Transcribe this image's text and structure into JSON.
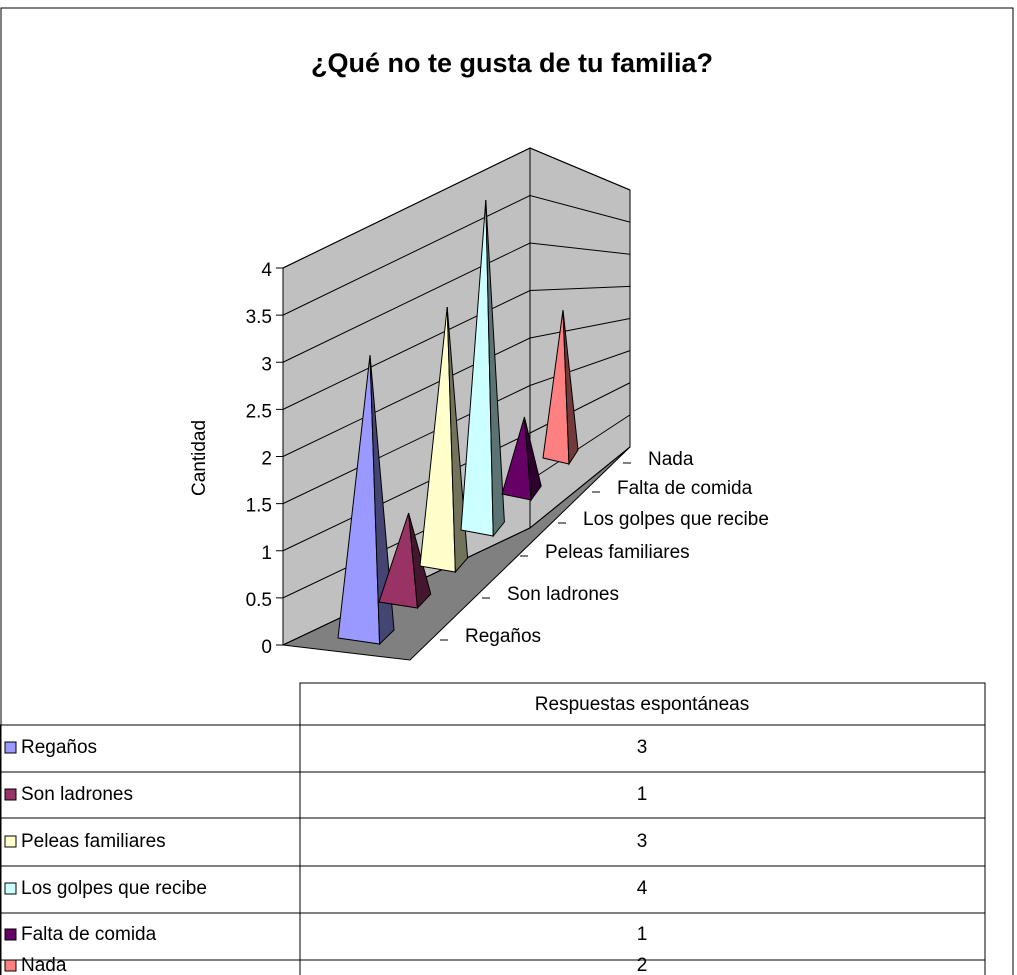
{
  "chart_data": {
    "type": "pyramid",
    "title": "¿Qué no te gusta de tu familia?",
    "y_label": "Cantidad",
    "categories": [
      "Regaños",
      "Son ladrones",
      "Peleas familiares",
      "Los golpes que recibe",
      "Falta de comida",
      "Nada"
    ],
    "colors": [
      "#9999ff",
      "#993366",
      "#ffffcc",
      "#ccffff",
      "#660066",
      "#ff8080"
    ],
    "series": [
      {
        "name": "Respuestas espontáneas",
        "values": [
          3,
          1,
          3,
          4,
          1,
          2
        ]
      }
    ],
    "ylim": [
      0,
      4
    ],
    "yticks": [
      0,
      0.5,
      1,
      1.5,
      2,
      2.5,
      3,
      3.5,
      4
    ],
    "grid": true,
    "data_table": true
  }
}
